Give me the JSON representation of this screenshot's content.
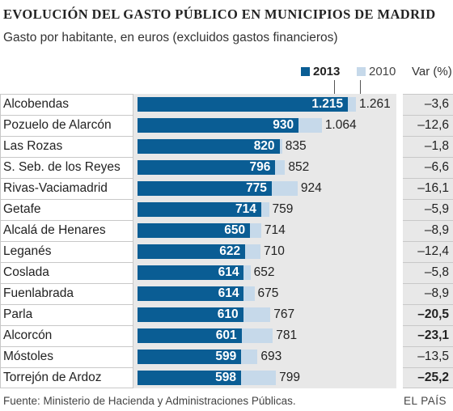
{
  "title": "EVOLUCIÓN DEL GASTO PÚBLICO EN MUNICIPIOS DE MADRID",
  "subtitle": "Gasto por habitante, en euros (excluidos gastos financieros)",
  "legend": {
    "series_2013": "2013",
    "series_2010": "2010",
    "var_header": "Var (%)"
  },
  "colors": {
    "series_2013": "#0a5d94",
    "series_2010": "#c6d9ea",
    "background": "#e8e8e8"
  },
  "footer": {
    "source": "Fuente: Ministerio de Hacienda y Administraciones Públicas.",
    "brand": "EL PAÍS"
  },
  "chart_data": {
    "type": "bar",
    "orientation": "horizontal",
    "title": "EVOLUCIÓN DEL GASTO PÚBLICO EN MUNICIPIOS DE MADRID",
    "subtitle": "Gasto por habitante, en euros (excluidos gastos financieros)",
    "categories": [
      "Alcobendas",
      "Pozuelo de Alarcón",
      "Las Rozas",
      "S. Seb. de los Reyes",
      "Rivas-Vaciamadrid",
      "Getafe",
      "Alcalá de Henares",
      "Leganés",
      "Coslada",
      "Fuenlabrada",
      "Parla",
      "Alcorcón",
      "Móstoles",
      "Torrejón de Ardoz"
    ],
    "series": [
      {
        "name": "2013",
        "values": [
          1215,
          930,
          820,
          796,
          775,
          714,
          650,
          622,
          614,
          614,
          610,
          601,
          599,
          598
        ],
        "labels": [
          "1.215",
          "930",
          "820",
          "796",
          "775",
          "714",
          "650",
          "622",
          "614",
          "614",
          "610",
          "601",
          "599",
          "598"
        ]
      },
      {
        "name": "2010",
        "values": [
          1261,
          1064,
          835,
          852,
          924,
          759,
          714,
          710,
          652,
          675,
          767,
          781,
          693,
          799
        ],
        "labels": [
          "1.261",
          "1.064",
          "835",
          "852",
          "924",
          "759",
          "714",
          "710",
          "652",
          "675",
          "767",
          "781",
          "693",
          "799"
        ]
      }
    ],
    "var_pct": [
      "–3,6",
      "–12,6",
      "–1,8",
      "–6,6",
      "–16,1",
      "–5,9",
      "–8,9",
      "–12,4",
      "–5,8",
      "–8,9",
      "–20,5",
      "–23,1",
      "–13,5",
      "–25,2"
    ],
    "var_bold": [
      false,
      false,
      false,
      false,
      false,
      false,
      false,
      false,
      false,
      false,
      true,
      true,
      false,
      true
    ],
    "xlim": [
      0,
      1261
    ],
    "legend_position": "top-right",
    "grid": false
  }
}
